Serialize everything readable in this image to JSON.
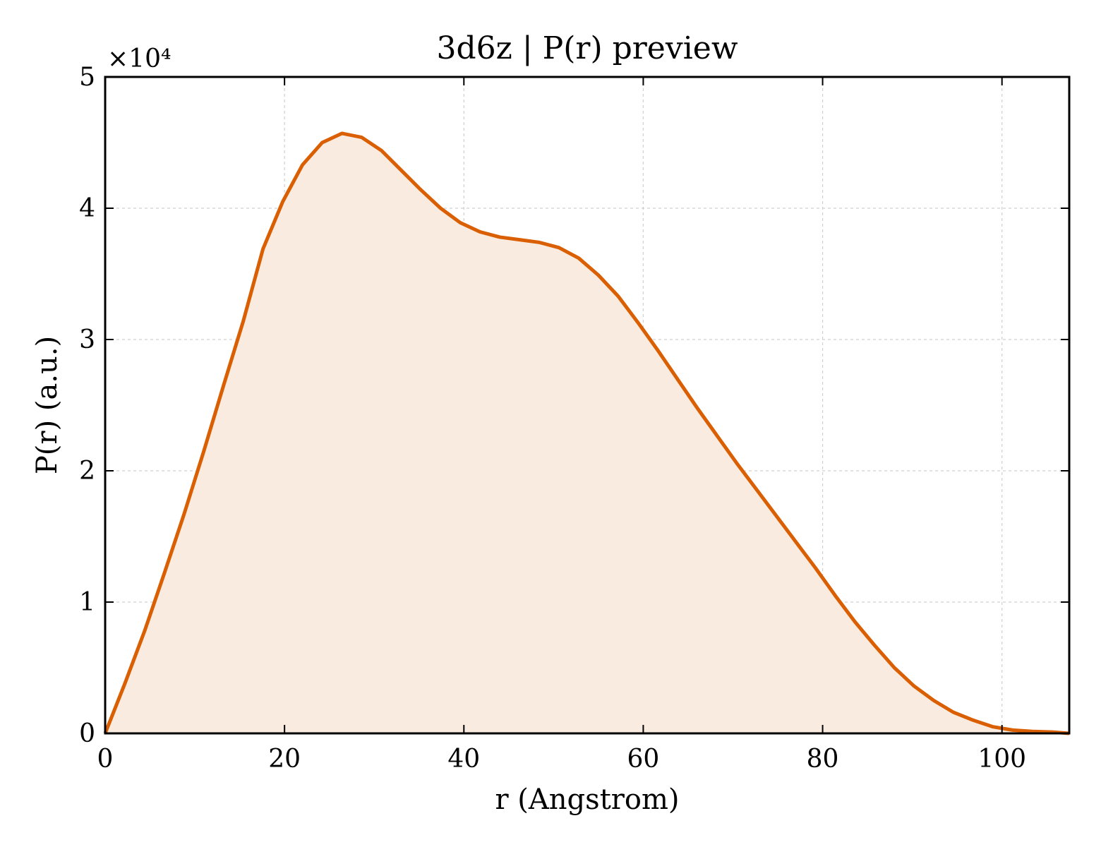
{
  "chart_data": {
    "type": "area",
    "title": "3d6z | P(r) preview",
    "xlabel": "r (Angstrom)",
    "ylabel": "P(r) (a.u.)",
    "y_multiplier": "×10⁴",
    "xlim": [
      0,
      107.5
    ],
    "ylim": [
      0,
      50000
    ],
    "x_ticks": [
      0,
      20,
      40,
      60,
      80,
      100
    ],
    "y_ticks": [
      0,
      10000,
      20000,
      30000,
      40000,
      50000
    ],
    "x_tick_labels": [
      "0",
      "20",
      "40",
      "60",
      "80",
      "100"
    ],
    "y_tick_labels": [
      "0",
      "1",
      "2",
      "3",
      "4",
      "5"
    ],
    "grid": true,
    "line_color": "#d95f02",
    "fill_color": "#f9ebe0",
    "series": [
      {
        "x": [
          0,
          2.2,
          4.4,
          6.6,
          8.8,
          11.0,
          13.2,
          15.4,
          17.6,
          19.8,
          22.0,
          24.2,
          26.4,
          28.6,
          30.8,
          33.0,
          35.2,
          37.4,
          39.6,
          41.8,
          44.0,
          46.2,
          48.4,
          50.6,
          52.8,
          55.0,
          57.2,
          59.4,
          61.6,
          63.8,
          66.0,
          68.2,
          70.4,
          72.6,
          74.8,
          77.0,
          79.2,
          81.4,
          83.6,
          85.8,
          88.0,
          90.2,
          92.4,
          94.6,
          96.8,
          99.0,
          101.2,
          103.4,
          105.6,
          107.5
        ],
        "y": [
          0,
          3800,
          7800,
          12200,
          16700,
          21500,
          26500,
          31400,
          36900,
          40500,
          43300,
          45000,
          45700,
          45400,
          44400,
          42900,
          41400,
          40000,
          38900,
          38200,
          37800,
          37600,
          37400,
          37000,
          36200,
          34900,
          33300,
          31300,
          29200,
          27000,
          24800,
          22700,
          20600,
          18600,
          16600,
          14600,
          12600,
          10500,
          8500,
          6700,
          5000,
          3600,
          2500,
          1600,
          1000,
          500,
          250,
          150,
          100,
          0
        ]
      }
    ]
  }
}
